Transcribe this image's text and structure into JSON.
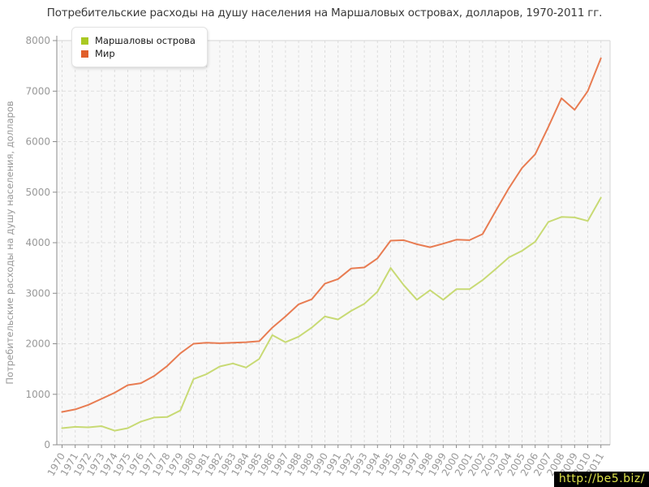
{
  "watermark": "http://be5.biz/",
  "chart_data": {
    "type": "line",
    "title": "Потребительские расходы на душу населения на Маршаловых островах, долларов, 1970-2011 гг.",
    "xlabel": "",
    "ylabel": "Потребительские расходы на душу населения, долларов",
    "ylim": [
      0,
      8000
    ],
    "y_ticks": [
      0,
      1000,
      2000,
      3000,
      4000,
      5000,
      6000,
      7000,
      8000
    ],
    "grid": true,
    "legend_position": "top-left",
    "plot_background": "#f8f8f8",
    "gridline_color": "#dddddd",
    "axis_color": "#8c8c8c",
    "tick_label_color": "#999999",
    "x": [
      1970,
      1971,
      1972,
      1973,
      1974,
      1975,
      1976,
      1977,
      1978,
      1979,
      1980,
      1981,
      1982,
      1983,
      1984,
      1985,
      1986,
      1987,
      1988,
      1989,
      1990,
      1991,
      1992,
      1993,
      1994,
      1995,
      1996,
      1997,
      1998,
      1999,
      2000,
      2001,
      2002,
      2003,
      2004,
      2005,
      2006,
      2007,
      2008,
      2009,
      2010,
      2011
    ],
    "series": [
      {
        "name": "Маршаловы острова",
        "color": "#c8da74",
        "swatch_color": "#aac923",
        "values": [
          330,
          355,
          345,
          370,
          280,
          330,
          460,
          540,
          550,
          680,
          1300,
          1400,
          1550,
          1610,
          1530,
          1700,
          2170,
          2030,
          2140,
          2320,
          2540,
          2480,
          2650,
          2790,
          3030,
          3500,
          3160,
          2870,
          3060,
          2870,
          3080,
          3080,
          3260,
          3480,
          3710,
          3840,
          4020,
          4410,
          4510,
          4500,
          4430,
          4890
        ]
      },
      {
        "name": "Мир",
        "color": "#e87c52",
        "swatch_color": "#e05f2b",
        "values": [
          650,
          700,
          790,
          910,
          1030,
          1180,
          1220,
          1360,
          1560,
          1810,
          2000,
          2020,
          2010,
          2020,
          2030,
          2050,
          2320,
          2540,
          2780,
          2880,
          3190,
          3280,
          3490,
          3510,
          3690,
          4040,
          4050,
          3970,
          3910,
          3980,
          4060,
          4050,
          4170,
          4630,
          5080,
          5480,
          5750,
          6290,
          6860,
          6630,
          7000,
          7650
        ]
      }
    ]
  }
}
